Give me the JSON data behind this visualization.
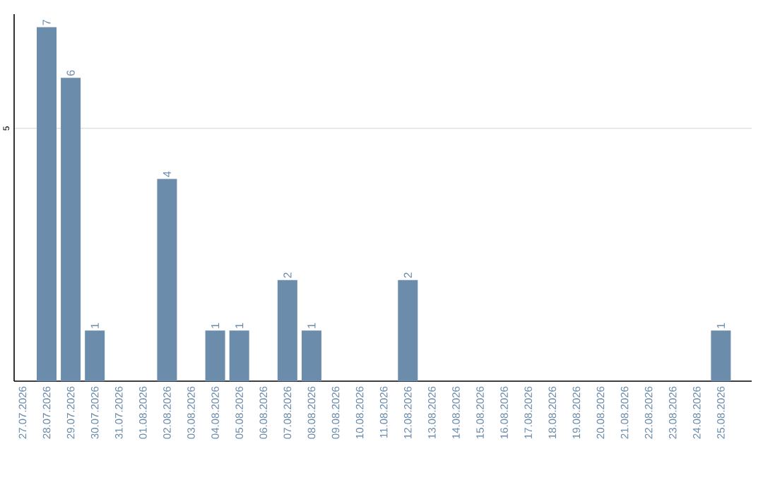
{
  "chart_data": {
    "type": "bar",
    "categories": [
      "27.07.2026",
      "28.07.2026",
      "29.07.2026",
      "30.07.2026",
      "31.07.2026",
      "01.08.2026",
      "02.08.2026",
      "03.08.2026",
      "04.08.2026",
      "05.08.2026",
      "06.08.2026",
      "07.08.2026",
      "08.08.2026",
      "09.08.2026",
      "10.08.2026",
      "11.08.2026",
      "12.08.2026",
      "13.08.2026",
      "14.08.2026",
      "15.08.2026",
      "16.08.2026",
      "17.08.2026",
      "18.08.2026",
      "19.08.2026",
      "20.08.2026",
      "21.08.2026",
      "22.08.2026",
      "23.08.2026",
      "24.08.2026",
      "25.08.2026"
    ],
    "values": [
      0,
      7,
      6,
      1,
      0,
      0,
      4,
      0,
      1,
      1,
      0,
      2,
      1,
      0,
      0,
      0,
      2,
      0,
      0,
      0,
      0,
      0,
      0,
      0,
      0,
      0,
      0,
      0,
      0,
      1
    ],
    "value_labels": [
      null,
      "7",
      "6",
      "1",
      null,
      null,
      "4",
      null,
      "1",
      "1",
      null,
      "2",
      "1",
      null,
      null,
      null,
      "2",
      null,
      null,
      null,
      null,
      null,
      null,
      null,
      null,
      null,
      null,
      null,
      null,
      "1"
    ],
    "color": "#6b8cab",
    "ylim": [
      0,
      7.26
    ],
    "yticks": [
      5
    ],
    "grid": "y"
  }
}
